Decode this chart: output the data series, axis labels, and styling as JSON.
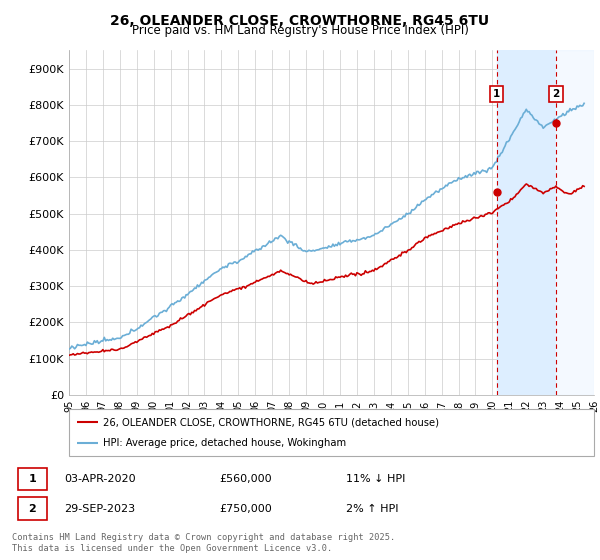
{
  "title": "26, OLEANDER CLOSE, CROWTHORNE, RG45 6TU",
  "subtitle": "Price paid vs. HM Land Registry's House Price Index (HPI)",
  "ylim": [
    0,
    950000
  ],
  "yticks": [
    0,
    100000,
    200000,
    300000,
    400000,
    500000,
    600000,
    700000,
    800000,
    900000
  ],
  "yticklabels": [
    "£0",
    "£100K",
    "£200K",
    "£300K",
    "£400K",
    "£500K",
    "£600K",
    "£700K",
    "£800K",
    "£900K"
  ],
  "hpi_color": "#6baed6",
  "price_color": "#cc0000",
  "vline_color": "#cc0000",
  "marker1_date": 2020.25,
  "marker2_date": 2023.75,
  "marker1_price": 560000,
  "marker2_price": 750000,
  "marker1_text": "03-APR-2020",
  "marker1_price_text": "£560,000",
  "marker1_hpi_text": "11% ↓ HPI",
  "marker2_text": "29-SEP-2023",
  "marker2_price_text": "£750,000",
  "marker2_hpi_text": "2% ↑ HPI",
  "legend_line1": "26, OLEANDER CLOSE, CROWTHORNE, RG45 6TU (detached house)",
  "legend_line2": "HPI: Average price, detached house, Wokingham",
  "footer": "Contains HM Land Registry data © Crown copyright and database right 2025.\nThis data is licensed under the Open Government Licence v3.0.",
  "background_color": "#ffffff",
  "plot_bg_color": "#ffffff",
  "grid_color": "#cccccc",
  "shade_color": "#ddeeff",
  "xstart": 1995,
  "xend": 2026
}
